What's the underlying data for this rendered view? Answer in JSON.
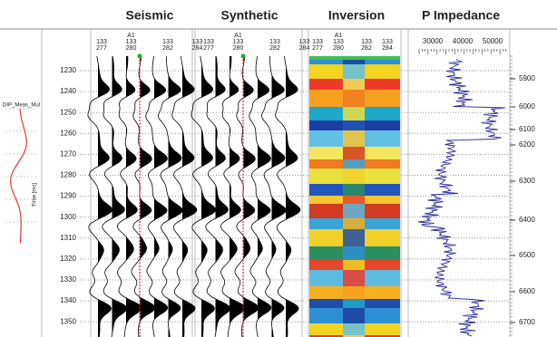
{
  "titles": [
    "Seismic",
    "Synthetic",
    "Inversion",
    "P Impedance"
  ],
  "left_panel": {
    "label": "DIP_Meas_Mul",
    "axis_label": "Time [ms]"
  },
  "time_ticks": [
    "1230",
    "1240",
    "1250",
    "1260",
    "1270",
    "1280",
    "1290",
    "1300",
    "1310",
    "1320",
    "1330",
    "1340",
    "1350"
  ],
  "trace_headers": {
    "well": "A1",
    "inline": [
      "133",
      "133",
      "133",
      "133"
    ],
    "xline": [
      "277",
      "280",
      "282",
      "284"
    ]
  },
  "impedance_ticks": [
    "30000",
    "40000",
    "50000"
  ],
  "depth_ticks": [
    "5900",
    "6000",
    "6100",
    "6200",
    "6300",
    "6400",
    "6500",
    "6600",
    "6700"
  ]
}
